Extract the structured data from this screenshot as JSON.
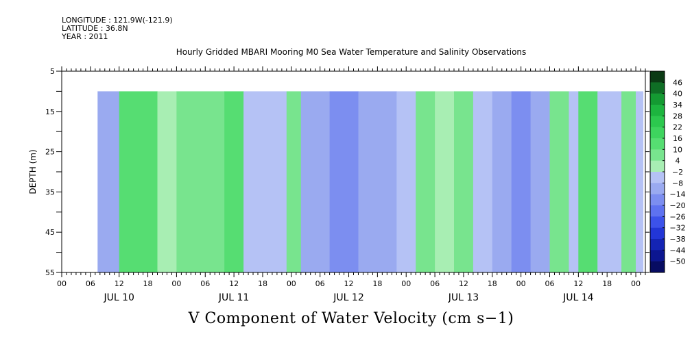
{
  "meta": {
    "longitude": "LONGITUDE : 121.9W(-121.9)",
    "latitude": "LATITUDE : 36.8N",
    "year": "YEAR : 2011"
  },
  "chart_data": {
    "type": "heatmap",
    "title": "Hourly Gridded MBARI Mooring M0 Sea Water Temperature and Salinity Observations",
    "caption": "V Component of Water Velocity (cm s−1)",
    "ylabel": "DEPTH (m)",
    "ylim": [
      55,
      5
    ],
    "yticks": [
      "5",
      "15",
      "25",
      "35",
      "45",
      "55"
    ],
    "data_depth_range": [
      10,
      55
    ],
    "x_range_hours": [
      0,
      122
    ],
    "data_start_hour": 7.5,
    "hour_tick_labels": [
      "00",
      "06",
      "12",
      "18",
      "00",
      "06",
      "12",
      "18",
      "00",
      "06",
      "12",
      "18",
      "00",
      "06",
      "12",
      "18",
      "00",
      "06",
      "12",
      "18",
      "00"
    ],
    "day_labels": [
      "JUL 10",
      "JUL 11",
      "JUL 12",
      "JUL 13",
      "JUL 14"
    ],
    "colorbar_labels": [
      "46",
      "40",
      "34",
      "28",
      "22",
      "16",
      "10",
      "4",
      "−2",
      "−8",
      "−14",
      "−20",
      "−26",
      "−32",
      "−38",
      "−44",
      "−50"
    ],
    "colorbar_colors": [
      "#0b3a14",
      "#0f6e25",
      "#149a32",
      "#1db53f",
      "#2cc84e",
      "#3ed45e",
      "#56dd72",
      "#78e48e",
      "#a8eeb3",
      "#b5c2f5",
      "#9aaaf0",
      "#7c8ef0",
      "#5e72f0",
      "#3c52ea",
      "#2236d6",
      "#1424b4",
      "#0c1690",
      "#070c62"
    ],
    "v_bands": [
      {
        "h0": 7.5,
        "h1": 12,
        "v": -8
      },
      {
        "h0": 12,
        "h1": 20,
        "v": 12
      },
      {
        "h0": 20,
        "h1": 24,
        "v": 4
      },
      {
        "h0": 24,
        "h1": 34,
        "v": 8
      },
      {
        "h0": 34,
        "h1": 38,
        "v": 14
      },
      {
        "h0": 38,
        "h1": 47,
        "v": -6
      },
      {
        "h0": 47,
        "h1": 50,
        "v": 6
      },
      {
        "h0": 50,
        "h1": 56,
        "v": -10
      },
      {
        "h0": 56,
        "h1": 62,
        "v": -14
      },
      {
        "h0": 62,
        "h1": 70,
        "v": -8
      },
      {
        "h0": 70,
        "h1": 74,
        "v": -4
      },
      {
        "h0": 74,
        "h1": 78,
        "v": 8
      },
      {
        "h0": 78,
        "h1": 82,
        "v": 4
      },
      {
        "h0": 82,
        "h1": 86,
        "v": 8
      },
      {
        "h0": 86,
        "h1": 90,
        "v": -6
      },
      {
        "h0": 90,
        "h1": 94,
        "v": -10
      },
      {
        "h0": 94,
        "h1": 98,
        "v": -14
      },
      {
        "h0": 98,
        "h1": 102,
        "v": -8
      },
      {
        "h0": 102,
        "h1": 106,
        "v": 6
      },
      {
        "h0": 106,
        "h1": 108,
        "v": -4
      },
      {
        "h0": 108,
        "h1": 112,
        "v": 12
      },
      {
        "h0": 112,
        "h1": 117,
        "v": -6
      },
      {
        "h0": 117,
        "h1": 120,
        "v": 10
      },
      {
        "h0": 120,
        "h1": 121.5,
        "v": -6
      }
    ]
  }
}
